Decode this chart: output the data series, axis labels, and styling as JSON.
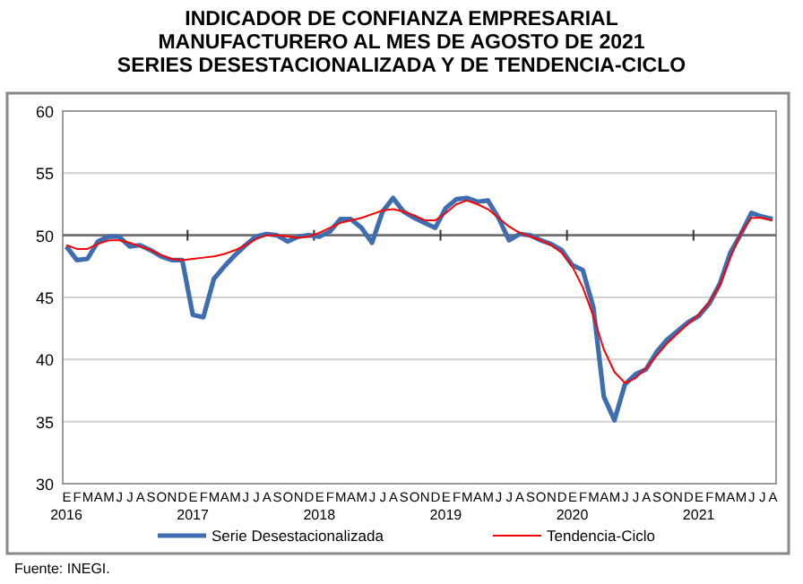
{
  "chart_data": {
    "type": "line",
    "title": "INDICADOR DE CONFIANZA EMPRESARIAL MANUFACTURERO AL MES DE AGOSTO DE 2021",
    "subtitle": "SERIES DESESTACIONALIZADA Y DE TENDENCIA-CICLO",
    "categories": [
      "E",
      "F",
      "M",
      "A",
      "M",
      "J",
      "J",
      "A",
      "S",
      "O",
      "N",
      "D",
      "E",
      "F",
      "M",
      "A",
      "M",
      "J",
      "J",
      "A",
      "S",
      "O",
      "N",
      "D",
      "E",
      "F",
      "M",
      "A",
      "M",
      "J",
      "J",
      "A",
      "S",
      "O",
      "N",
      "D",
      "E",
      "F",
      "M",
      "A",
      "M",
      "J",
      "J",
      "A",
      "S",
      "O",
      "N",
      "D",
      "E",
      "F",
      "M",
      "A",
      "M",
      "J",
      "J",
      "A",
      "S",
      "O",
      "N",
      "D",
      "E",
      "F",
      "M",
      "A",
      "M",
      "J",
      "J",
      "A"
    ],
    "series": [
      {
        "name": "Serie Desestacionalizada",
        "color": "#3f6eb0",
        "values": [
          49.1,
          48.0,
          48.1,
          49.5,
          49.9,
          49.9,
          49.1,
          49.2,
          48.8,
          48.3,
          48.0,
          48.0,
          43.6,
          43.4,
          46.5,
          47.5,
          48.4,
          49.2,
          49.9,
          50.1,
          50.0,
          49.5,
          49.9,
          50.0,
          49.9,
          50.3,
          51.3,
          51.3,
          50.6,
          49.4,
          51.9,
          53.0,
          51.9,
          51.4,
          51.0,
          50.6,
          52.2,
          52.9,
          53.0,
          52.7,
          52.8,
          51.4,
          49.6,
          50.1,
          50.0,
          49.6,
          49.3,
          48.8,
          47.6,
          47.2,
          44.2,
          37.0,
          35.1,
          38.0,
          38.8,
          39.2,
          40.6,
          41.6,
          42.3,
          43.0,
          43.5,
          44.5,
          46.1,
          48.6,
          50.1,
          51.8,
          51.5,
          51.3
        ]
      },
      {
        "name": "Tendencia-Ciclo",
        "color": "#ff0000",
        "values": [
          49.2,
          48.9,
          48.9,
          49.3,
          49.6,
          49.6,
          49.4,
          49.1,
          48.8,
          48.4,
          48.1,
          48.0,
          48.1,
          48.2,
          48.3,
          48.5,
          48.8,
          49.2,
          49.7,
          50.0,
          50.0,
          49.9,
          49.8,
          49.9,
          50.2,
          50.6,
          51.0,
          51.2,
          51.4,
          51.7,
          52.0,
          52.1,
          51.9,
          51.6,
          51.2,
          51.2,
          51.8,
          52.5,
          52.8,
          52.5,
          52.1,
          51.4,
          50.7,
          50.2,
          49.9,
          49.6,
          49.2,
          48.6,
          47.5,
          45.8,
          43.5,
          40.8,
          39.0,
          38.1,
          38.5,
          39.3,
          40.3,
          41.3,
          42.1,
          42.9,
          43.6,
          44.6,
          46.0,
          48.2,
          50.2,
          51.4,
          51.4,
          51.2
        ]
      }
    ],
    "ylim": [
      30,
      60
    ],
    "yticks": [
      30,
      35,
      40,
      45,
      50,
      55,
      60
    ],
    "grid": "y",
    "legend": "bottom",
    "marker": "none",
    "line_style": "solid",
    "ref_lines": [
      {
        "axis": "y",
        "value": 50,
        "color": "#707070"
      }
    ],
    "annotations": [
      "2016",
      "2017",
      "2018",
      "2019",
      "2020",
      "2021",
      "Fuente: INEGI."
    ]
  }
}
